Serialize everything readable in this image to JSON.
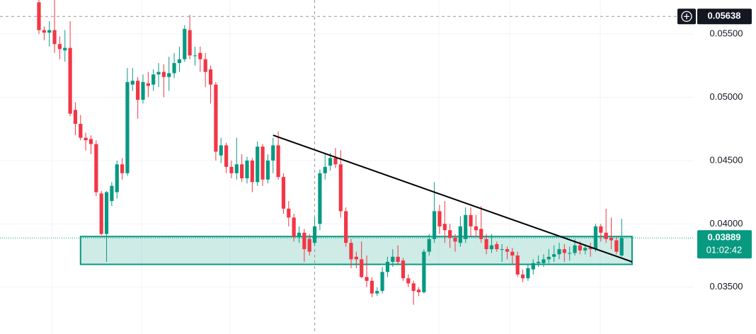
{
  "chart_data": {
    "type": "candlestick",
    "up_color": "#089981",
    "down_color": "#f23645",
    "ylim": [
      0.0313,
      0.05768
    ],
    "yticks": [
      {
        "value": 0.035,
        "label": "0.03500"
      },
      {
        "value": 0.04,
        "label": "0.04000"
      },
      {
        "value": 0.045,
        "label": "0.04500"
      },
      {
        "value": 0.05,
        "label": "0.05000"
      },
      {
        "value": 0.055,
        "label": "0.05500"
      }
    ],
    "grid": true,
    "open": [
      0.0575,
      0.0553,
      0.0551,
      0.0553,
      0.0542,
      0.0537,
      0.0539,
      0.049,
      0.0479,
      0.0468,
      0.0467,
      0.0463,
      0.0424,
      0.0392,
      0.0418,
      0.0425,
      0.0447,
      0.044,
      0.051,
      0.0513,
      0.0498,
      0.0511,
      0.051,
      0.0518,
      0.052,
      0.0516,
      0.0519,
      0.0527,
      0.053,
      0.0553,
      0.0533,
      0.0535,
      0.053,
      0.0522,
      0.051,
      0.0454,
      0.0462,
      0.0445,
      0.044,
      0.0447,
      0.0436,
      0.045,
      0.0433,
      0.0461,
      0.0435,
      0.045,
      0.0462,
      0.0437,
      0.0412,
      0.0405,
      0.039,
      0.0393,
      0.0388,
      0.0385,
      0.04,
      0.044,
      0.0446,
      0.0452,
      0.0447,
      0.041,
      0.0385,
      0.0374,
      0.0372,
      0.0358,
      0.0355,
      0.0345,
      0.0347,
      0.0362,
      0.037,
      0.0374,
      0.0371,
      0.0357,
      0.0353,
      0.0348,
      0.0346,
      0.0378,
      0.0388,
      0.041,
      0.04,
      0.0395,
      0.0389,
      0.0385,
      0.0388,
      0.0407,
      0.0398,
      0.0396,
      0.0388,
      0.038,
      0.0384,
      0.038,
      0.038,
      0.0378,
      0.0375,
      0.036,
      0.0357,
      0.0364,
      0.0369,
      0.0369,
      0.0372,
      0.0374,
      0.0376,
      0.038,
      0.0377,
      0.0377,
      0.0383,
      0.0379,
      0.0381,
      0.038,
      0.0398,
      0.0393,
      0.0389,
      0.0387,
      0.0375
    ],
    "high": [
      0.0577,
      0.0556,
      0.056,
      0.0577,
      0.0548,
      0.0553,
      0.056,
      0.0496,
      0.0486,
      0.0472,
      0.047,
      0.0466,
      0.0426,
      0.0426,
      0.0433,
      0.045,
      0.0452,
      0.0523,
      0.0523,
      0.0516,
      0.0518,
      0.052,
      0.0522,
      0.0527,
      0.0526,
      0.0532,
      0.0535,
      0.054,
      0.0557,
      0.0565,
      0.054,
      0.054,
      0.0535,
      0.0525,
      0.0512,
      0.0468,
      0.0464,
      0.045,
      0.0468,
      0.0455,
      0.0453,
      0.0452,
      0.0465,
      0.0463,
      0.0455,
      0.0468,
      0.0473,
      0.044,
      0.0418,
      0.0408,
      0.0398,
      0.0396,
      0.0392,
      0.0405,
      0.0443,
      0.0455,
      0.0456,
      0.046,
      0.0458,
      0.0413,
      0.0388,
      0.0378,
      0.0386,
      0.0375,
      0.0358,
      0.035,
      0.0366,
      0.0374,
      0.038,
      0.0383,
      0.0373,
      0.036,
      0.0355,
      0.035,
      0.038,
      0.0392,
      0.0433,
      0.0415,
      0.0418,
      0.04,
      0.0392,
      0.0406,
      0.0413,
      0.0413,
      0.0407,
      0.0414,
      0.0392,
      0.0392,
      0.0386,
      0.0384,
      0.0382,
      0.0381,
      0.0378,
      0.0364,
      0.0368,
      0.0372,
      0.0375,
      0.0376,
      0.038,
      0.0383,
      0.0385,
      0.0384,
      0.0382,
      0.0388,
      0.0386,
      0.0384,
      0.0385,
      0.04,
      0.04,
      0.0412,
      0.0405,
      0.039,
      0.0404
    ],
    "low": [
      0.055,
      0.0545,
      0.054,
      0.0535,
      0.053,
      0.0528,
      0.0485,
      0.047,
      0.0466,
      0.0458,
      0.0455,
      0.0422,
      0.0391,
      0.037,
      0.0414,
      0.042,
      0.0435,
      0.0438,
      0.0505,
      0.0483,
      0.0495,
      0.05,
      0.0505,
      0.0508,
      0.05,
      0.0505,
      0.0515,
      0.052,
      0.0528,
      0.053,
      0.0525,
      0.052,
      0.0508,
      0.0495,
      0.045,
      0.0448,
      0.044,
      0.0436,
      0.0435,
      0.0433,
      0.0432,
      0.0425,
      0.043,
      0.043,
      0.0432,
      0.044,
      0.0435,
      0.0408,
      0.0398,
      0.0386,
      0.0385,
      0.037,
      0.0375,
      0.0383,
      0.0395,
      0.0435,
      0.0442,
      0.0444,
      0.0405,
      0.0382,
      0.0365,
      0.0365,
      0.0357,
      0.035,
      0.0342,
      0.0343,
      0.0345,
      0.0358,
      0.0366,
      0.0368,
      0.0355,
      0.035,
      0.0336,
      0.0343,
      0.0345,
      0.0375,
      0.0385,
      0.0392,
      0.0385,
      0.0381,
      0.0378,
      0.0382,
      0.0385,
      0.039,
      0.039,
      0.0385,
      0.0376,
      0.0377,
      0.0378,
      0.037,
      0.0372,
      0.0368,
      0.0358,
      0.0354,
      0.0355,
      0.036,
      0.0366,
      0.0366,
      0.0369,
      0.037,
      0.0372,
      0.037,
      0.0371,
      0.0375,
      0.0376,
      0.0376,
      0.0374,
      0.0378,
      0.0386,
      0.0385,
      0.038,
      0.0376,
      0.0374
    ],
    "close": [
      0.0553,
      0.0551,
      0.0553,
      0.0542,
      0.0538,
      0.0539,
      0.0487,
      0.0479,
      0.0468,
      0.0466,
      0.0463,
      0.0425,
      0.0392,
      0.0425,
      0.043,
      0.0447,
      0.044,
      0.0512,
      0.0513,
      0.0498,
      0.0512,
      0.0509,
      0.0518,
      0.052,
      0.0516,
      0.0519,
      0.0527,
      0.053,
      0.0554,
      0.0533,
      0.0533,
      0.053,
      0.052,
      0.051,
      0.0457,
      0.0462,
      0.0445,
      0.044,
      0.0447,
      0.0436,
      0.045,
      0.0433,
      0.0461,
      0.0435,
      0.045,
      0.0462,
      0.0437,
      0.0412,
      0.0405,
      0.039,
      0.0393,
      0.038,
      0.0378,
      0.0398,
      0.044,
      0.0445,
      0.0452,
      0.0447,
      0.041,
      0.0385,
      0.0372,
      0.0372,
      0.0358,
      0.0355,
      0.0345,
      0.0347,
      0.0362,
      0.037,
      0.0374,
      0.037,
      0.0357,
      0.0353,
      0.0347,
      0.0346,
      0.0378,
      0.0388,
      0.041,
      0.0398,
      0.0395,
      0.0389,
      0.0386,
      0.0398,
      0.0407,
      0.0398,
      0.0395,
      0.0388,
      0.038,
      0.0383,
      0.038,
      0.038,
      0.0378,
      0.0375,
      0.036,
      0.0357,
      0.0365,
      0.0369,
      0.037,
      0.0372,
      0.0374,
      0.0376,
      0.038,
      0.0377,
      0.0377,
      0.0383,
      0.0379,
      0.0381,
      0.038,
      0.0398,
      0.0393,
      0.0388,
      0.0387,
      0.0378,
      0.03889
    ],
    "zone": {
      "from_index": 8,
      "to_index": 114,
      "top": 0.039,
      "bottom": 0.0368
    },
    "trendline": {
      "from_index": 45,
      "from_price": 0.047,
      "to_index": 114,
      "to_price": 0.037
    },
    "crosshair": {
      "index": 53,
      "price": 0.05638
    },
    "last_price": 0.03889,
    "countdown": "01:02:42"
  }
}
